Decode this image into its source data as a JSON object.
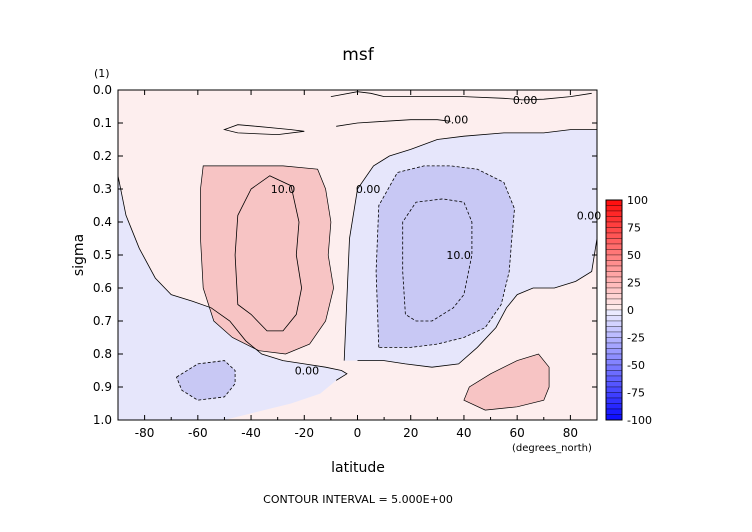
{
  "chart_data": {
    "type": "contour",
    "title": "msf",
    "y_units_label": "(1)",
    "xlabel": "latitude",
    "ylabel": "sigma",
    "x_units_label": "(degrees_north)",
    "footer": "CONTOUR INTERVAL = 5.000E+00",
    "xlim": [
      -90,
      90
    ],
    "ylim": [
      0.0,
      1.0
    ],
    "y_inverted": true,
    "x_ticks": [
      -80,
      -60,
      -40,
      -20,
      0,
      20,
      40,
      60,
      80
    ],
    "x_tick_labels": [
      "-80",
      "-60",
      "-40",
      "-20",
      "0",
      "20",
      "40",
      "60",
      "80"
    ],
    "y_ticks": [
      0.0,
      0.1,
      0.2,
      0.3,
      0.4,
      0.5,
      0.6,
      0.7,
      0.8,
      0.9,
      1.0
    ],
    "y_tick_labels": [
      "0.0",
      "0.1",
      "0.2",
      "0.3",
      "0.4",
      "0.5",
      "0.6",
      "0.7",
      "0.8",
      "0.9",
      "1.0"
    ],
    "colorbar": {
      "levels": [
        100,
        75,
        50,
        25,
        0,
        -25,
        -50,
        -75,
        -100
      ],
      "labels": [
        "100",
        "75",
        "50",
        "25",
        "0",
        "-25",
        "-50",
        "-75",
        "-100"
      ]
    },
    "contour_labels": [
      {
        "text": "10.0",
        "lat": -28,
        "sigma": 0.3
      },
      {
        "text": "0.00",
        "lat": 4,
        "sigma": 0.3
      },
      {
        "text": "10.0",
        "lat": 38,
        "sigma": 0.5
      },
      {
        "text": "0.00",
        "lat": 87,
        "sigma": 0.38
      },
      {
        "text": "0.00",
        "lat": -19,
        "sigma": 0.85
      },
      {
        "text": "0.00",
        "lat": 63,
        "sigma": 0.03
      },
      {
        "text": "0.00",
        "lat": 37,
        "sigma": 0.09
      }
    ],
    "colors": {
      "positive_light": "#fde6e6",
      "positive_mid": "#f7c4c4",
      "negative_light": "#e6e6fb",
      "negative_mid": "#c8c8f4",
      "background": "#fdeeee"
    }
  }
}
